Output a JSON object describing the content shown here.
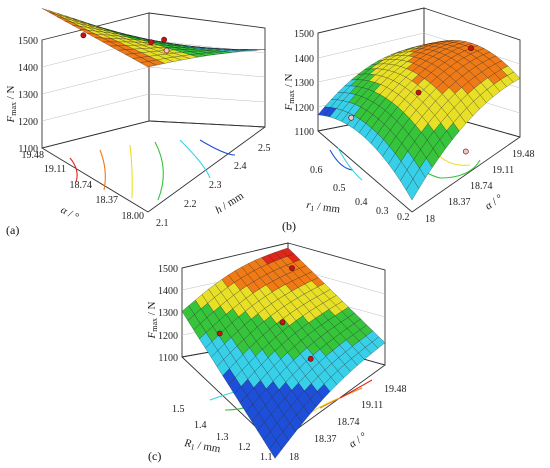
{
  "colors": {
    "low": "#1e4fd8",
    "mid_low": "#38d0e8",
    "mid": "#35c43a",
    "mid_high": "#e8e026",
    "high": "#f07a16",
    "top": "#e0251a",
    "marker": "#c21515"
  },
  "chart_data": [
    {
      "type": "surface",
      "panel_label": "(a)",
      "z_label": "Fmax / N",
      "z_label_main": "F",
      "z_label_sub": "max",
      "z_label_unit": " / N",
      "z_ticks": [
        "1500",
        "1400",
        "1300",
        "1200",
        "1100"
      ],
      "zlim": [
        1100,
        1500
      ],
      "x_label": "h / mm",
      "x_label_var": "h",
      "x_label_unit": " / mm",
      "x_ticks": [
        "2.1",
        "2.2",
        "2.3",
        "2.4",
        "2.5"
      ],
      "xlim": [
        2.1,
        2.5
      ],
      "y_label": "α / °",
      "y_label_var": "α",
      "y_label_unit": " / °",
      "y_ticks": [
        "18.00",
        "18.37",
        "18.74",
        "19.11",
        "19.48"
      ],
      "ylim": [
        18.0,
        19.48
      ],
      "surface_corners": {
        "xmin_ymin": 1380,
        "xmin_ymax": 1400,
        "xmax_ymin": 1130,
        "xmax_ymax": 1150
      },
      "points": [
        [
          2.2,
          19.3,
          1400
        ],
        [
          2.2,
          18.2,
          1280
        ],
        [
          2.3,
          18.74,
          1270
        ],
        [
          2.45,
          18.4,
          1150
        ]
      ]
    },
    {
      "type": "surface",
      "panel_label": "(b)",
      "z_label": "Fmax / N",
      "z_label_main": "F",
      "z_label_sub": "max",
      "z_label_unit": " / N",
      "z_ticks": [
        "1500",
        "1400",
        "1300",
        "1200",
        "1100"
      ],
      "zlim": [
        1100,
        1500
      ],
      "x_label": "r1 / mm",
      "x_label_var": "r",
      "x_label_sub": "1",
      "x_label_unit": " / mm",
      "x_ticks": [
        "0.6",
        "0.5",
        "0.4",
        "0.3",
        "0.2"
      ],
      "xlim": [
        0.2,
        0.6
      ],
      "y_label": "α / °",
      "y_label_var": "α",
      "y_label_unit": " / °",
      "y_ticks": [
        "18",
        "18.37",
        "18.74",
        "19.11",
        "19.48"
      ],
      "ylim": [
        18.0,
        19.48
      ],
      "surface_peak": {
        "x": 0.35,
        "y": 19.2,
        "z": 1420
      },
      "points": [
        [
          0.35,
          19.3,
          1430
        ],
        [
          0.4,
          18.74,
          1300
        ],
        [
          0.55,
          18.3,
          1130
        ],
        [
          0.25,
          18.9,
          1130
        ]
      ]
    },
    {
      "type": "surface",
      "panel_label": "(c)",
      "z_label": "Fmax / N",
      "z_label_main": "F",
      "z_label_sub": "max",
      "z_label_unit": " / N",
      "z_ticks": [
        "1500",
        "1400",
        "1300",
        "1200",
        "1100"
      ],
      "zlim": [
        1100,
        1500
      ],
      "x_label": "R1 / mm",
      "x_label_var": "R",
      "x_label_sub": "1",
      "x_label_unit": " / mm",
      "x_ticks": [
        "1.5",
        "1.4",
        "1.3",
        "1.2",
        "1.1"
      ],
      "xlim": [
        1.1,
        1.5
      ],
      "y_label": "α / °",
      "y_label_var": "α",
      "y_label_unit": " / °",
      "y_ticks": [
        "18",
        "18.37",
        "18.74",
        "19.11",
        "19.48"
      ],
      "ylim": [
        18.0,
        19.48
      ],
      "surface_corners": {
        "xmax_ymin": 1260,
        "xmax_ymax": 1460,
        "xmin_ymin": 1040,
        "xmin_ymax": 1200
      },
      "points": [
        [
          1.4,
          19.2,
          1440
        ],
        [
          1.3,
          18.74,
          1320
        ],
        [
          1.4,
          18.2,
          1250
        ],
        [
          1.2,
          18.8,
          1220
        ]
      ]
    }
  ]
}
